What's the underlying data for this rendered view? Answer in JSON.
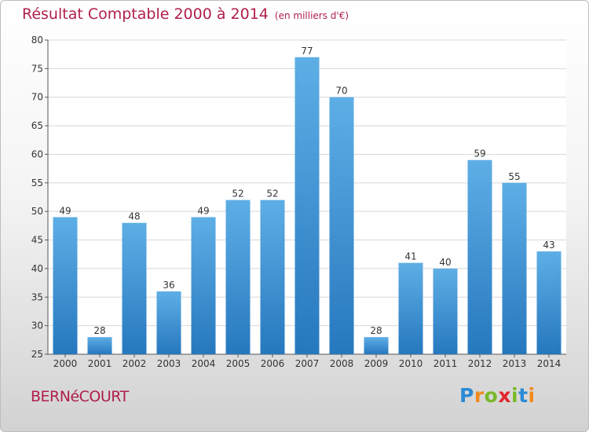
{
  "chart_data": {
    "type": "bar",
    "title": "Résultat Comptable 2000 à 2014",
    "subtitle": "(en milliers d'€)",
    "categories": [
      "2000",
      "2001",
      "2002",
      "2003",
      "2004",
      "2005",
      "2006",
      "2007",
      "2008",
      "2009",
      "2010",
      "2011",
      "2012",
      "2013",
      "2014"
    ],
    "values": [
      49,
      28,
      48,
      36,
      49,
      52,
      52,
      77,
      70,
      28,
      41,
      40,
      59,
      55,
      43
    ],
    "ylim": [
      25,
      80
    ],
    "yticks": [
      25,
      30,
      35,
      40,
      45,
      50,
      55,
      60,
      65,
      70,
      75,
      80
    ],
    "grid": true,
    "xlabel": "",
    "ylabel": ""
  },
  "location": "BERNéCOURT",
  "brand": {
    "letters": [
      "P",
      "r",
      "o",
      "x",
      "i",
      "t",
      "i"
    ]
  },
  "colors": {
    "bar_light": "#5eaee6",
    "bar_dark": "#2678be",
    "title": "#b01f4a",
    "grid": "#d8d8d8"
  }
}
